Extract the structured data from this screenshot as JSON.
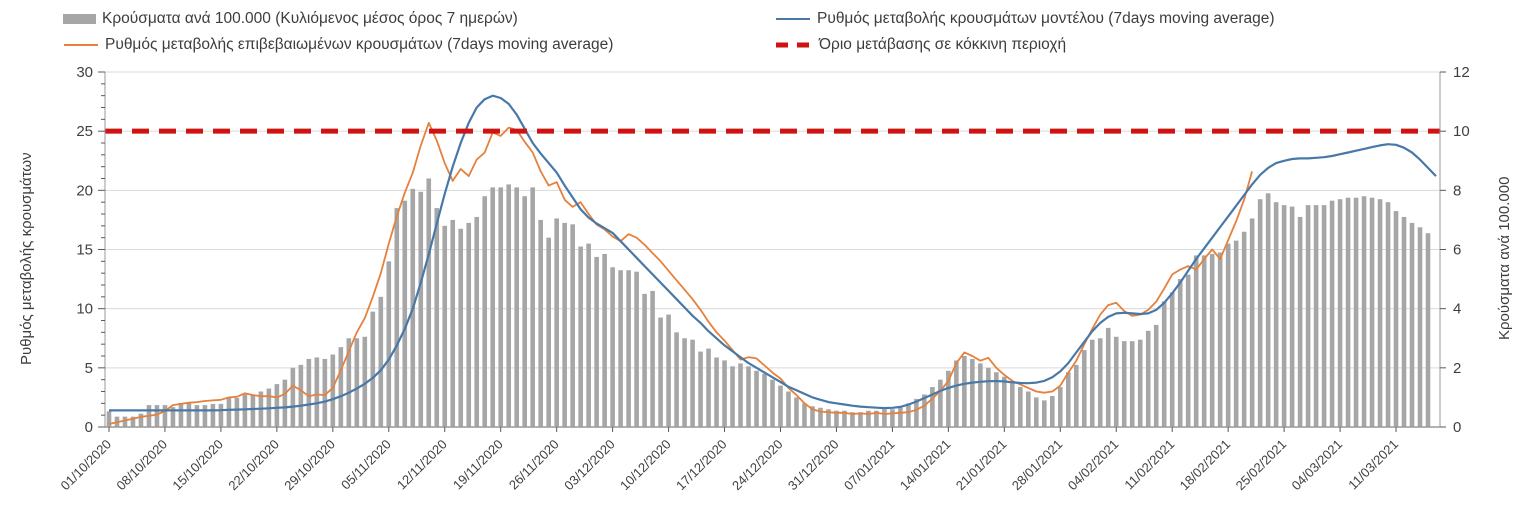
{
  "legend": {
    "items": [
      {
        "label": "Κρούσματα ανά 100.000  (Κυλιόμενος μέσος όρος 7 ημερών)",
        "swatch": "bar",
        "color": "#a6a6a6"
      },
      {
        "label": "Ρυθμός μεταβολής κρουσμάτων μοντέλου (7days moving average)",
        "swatch": "line",
        "color": "#4878a8"
      },
      {
        "label": "Ρυθμός μεταβολής επιβεβαιωμένων κρουσμάτων (7days moving average)",
        "swatch": "line",
        "color": "#e5813c"
      },
      {
        "label": "Όριο μετάβασης σε κόκκινη περιοχή",
        "swatch": "dashed-line",
        "color": "#cf1212"
      }
    ]
  },
  "axes": {
    "left": {
      "title": "Ρυθμός μεταβολής κρουσμάτων",
      "range": [
        0,
        30
      ],
      "major_ticks": [
        0,
        5,
        10,
        15,
        20,
        25,
        30
      ],
      "minor_tick_step": 1
    },
    "right": {
      "title": "Κρούσματα ανά 100.000",
      "range": [
        0,
        12
      ],
      "major_ticks": [
        0,
        2,
        4,
        6,
        8,
        10,
        12
      ]
    },
    "x": {
      "tick_interval_days": 7
    }
  },
  "chart_data": {
    "type": "combo",
    "x_unit": "day",
    "x_start": "01/10/2020",
    "n_days": 167,
    "grid": "horizontal",
    "legend_position": "top",
    "x_tick_labels": [
      "01/10/2020",
      "08/10/2020",
      "15/10/2020",
      "22/10/2020",
      "29/10/2020",
      "05/11/2020",
      "12/11/2020",
      "19/11/2020",
      "26/11/2020",
      "03/12/2020",
      "10/12/2020",
      "17/12/2020",
      "24/12/2020",
      "31/12/2020",
      "07/01/2021",
      "14/01/2021",
      "21/01/2021",
      "28/01/2021",
      "04/02/2021",
      "11/02/2021",
      "18/02/2021",
      "25/02/2021",
      "04/03/2021",
      "11/03/2021"
    ],
    "threshold": {
      "name": "Όριο μετάβασης σε κόκκινη περιοχή",
      "axis": "left",
      "value": 25,
      "color": "#cf1212",
      "style": "dashed"
    },
    "series": [
      {
        "name": "Κρούσματα ανά 100.000 (Κυλιόμενος μέσος όρος 7 ημερών)",
        "type": "bar",
        "axis": "right",
        "color": "#a6a6a6",
        "values": [
          0.53,
          0.35,
          0.35,
          0.35,
          0.45,
          0.74,
          0.74,
          0.74,
          0.67,
          0.81,
          0.81,
          0.74,
          0.74,
          0.78,
          0.78,
          0.98,
          0.98,
          1.1,
          1.1,
          1.2,
          1.3,
          1.45,
          1.6,
          2.0,
          2.1,
          2.3,
          2.35,
          2.3,
          2.45,
          2.7,
          3.0,
          3.0,
          3.05,
          3.9,
          4.4,
          5.6,
          7.4,
          7.65,
          8.05,
          7.95,
          8.4,
          7.4,
          6.8,
          7.0,
          6.7,
          6.9,
          7.1,
          7.8,
          8.1,
          8.1,
          8.2,
          8.1,
          7.8,
          8.1,
          7.0,
          6.4,
          7.05,
          6.9,
          6.85,
          6.1,
          6.2,
          5.75,
          5.85,
          5.4,
          5.3,
          5.3,
          5.25,
          4.5,
          4.6,
          3.7,
          3.8,
          3.2,
          3.0,
          2.95,
          2.55,
          2.65,
          2.35,
          2.25,
          2.05,
          2.15,
          2.05,
          1.9,
          1.8,
          1.6,
          1.4,
          1.2,
          1.0,
          0.8,
          0.7,
          0.65,
          0.6,
          0.55,
          0.55,
          0.5,
          0.5,
          0.55,
          0.55,
          0.6,
          0.6,
          0.65,
          0.8,
          0.95,
          1.1,
          1.35,
          1.6,
          1.9,
          2.25,
          2.4,
          2.3,
          2.15,
          2.0,
          1.85,
          1.7,
          1.5,
          1.35,
          1.2,
          1.0,
          0.9,
          1.05,
          1.35,
          1.85,
          2.1,
          2.6,
          2.95,
          3.0,
          3.35,
          3.05,
          2.9,
          2.9,
          2.95,
          3.25,
          3.45,
          4.25,
          4.55,
          5.0,
          5.15,
          5.8,
          5.8,
          5.85,
          5.9,
          6.2,
          6.3,
          6.6,
          7.05,
          7.7,
          7.9,
          7.6,
          7.5,
          7.45,
          7.1,
          7.5,
          7.5,
          7.5,
          7.65,
          7.7,
          7.75,
          7.75,
          7.8,
          7.75,
          7.7,
          7.6,
          7.3,
          7.1,
          6.9,
          6.75,
          6.55
        ]
      },
      {
        "name": "Ρυθμός μεταβολής επιβεβαιωμένων κρουσμάτων (7days moving average)",
        "type": "line",
        "axis": "left",
        "color": "#e5813c",
        "values": [
          0.25,
          0.4,
          0.55,
          0.7,
          0.85,
          0.95,
          1.05,
          1.35,
          1.85,
          1.95,
          2.05,
          2.1,
          2.2,
          2.25,
          2.3,
          2.5,
          2.55,
          2.85,
          2.7,
          2.6,
          2.6,
          2.5,
          2.8,
          3.5,
          3.1,
          2.6,
          2.75,
          2.7,
          3.3,
          4.8,
          6.4,
          8.0,
          9.2,
          11.0,
          13.0,
          15.5,
          17.8,
          19.8,
          21.5,
          23.8,
          25.7,
          24.2,
          22.3,
          20.8,
          21.8,
          21.2,
          22.6,
          23.2,
          24.9,
          24.6,
          25.3,
          25.1,
          24.1,
          23.2,
          21.6,
          20.4,
          20.7,
          19.2,
          18.6,
          19.0,
          18.0,
          17.1,
          16.7,
          16.1,
          15.7,
          16.3,
          16.0,
          15.4,
          14.7,
          14.0,
          13.2,
          12.4,
          11.6,
          10.8,
          9.9,
          8.9,
          8.0,
          7.3,
          6.5,
          5.7,
          5.9,
          5.8,
          5.2,
          4.6,
          4.1,
          3.3,
          2.7,
          2.0,
          1.5,
          1.3,
          1.25,
          1.2,
          1.2,
          1.1,
          1.15,
          1.1,
          1.2,
          1.1,
          1.15,
          1.2,
          1.25,
          1.45,
          1.8,
          2.4,
          3.05,
          3.9,
          5.4,
          6.3,
          6.0,
          5.6,
          5.85,
          5.0,
          4.4,
          3.9,
          3.6,
          3.3,
          3.0,
          2.9,
          3.0,
          3.5,
          4.6,
          5.6,
          7.0,
          8.3,
          9.5,
          10.3,
          10.5,
          9.8,
          9.4,
          9.5,
          9.9,
          10.6,
          11.7,
          12.9,
          13.3,
          13.6,
          13.3,
          14.2,
          15.0,
          14.2,
          15.8,
          17.4,
          19.2,
          21.6
        ]
      },
      {
        "name": "Ρυθμός μεταβολής κρουσμάτων μοντέλου (7days moving average)",
        "type": "line",
        "axis": "left",
        "color": "#4878a8",
        "values": [
          1.4,
          1.4,
          1.4,
          1.4,
          1.4,
          1.4,
          1.4,
          1.4,
          1.4,
          1.4,
          1.4,
          1.4,
          1.4,
          1.4,
          1.42,
          1.45,
          1.47,
          1.5,
          1.52,
          1.55,
          1.58,
          1.62,
          1.66,
          1.72,
          1.8,
          1.9,
          2.0,
          2.15,
          2.35,
          2.6,
          2.9,
          3.25,
          3.65,
          4.15,
          4.8,
          5.7,
          6.9,
          8.3,
          10.0,
          12.2,
          14.6,
          17.2,
          19.7,
          22.0,
          24.0,
          25.7,
          27.0,
          27.7,
          28.0,
          27.8,
          27.3,
          26.4,
          25.2,
          24.0,
          23.1,
          22.3,
          21.5,
          20.4,
          19.4,
          18.4,
          17.7,
          17.2,
          16.8,
          16.4,
          15.7,
          15.0,
          14.3,
          13.6,
          12.9,
          12.2,
          11.5,
          10.8,
          10.1,
          9.4,
          8.8,
          8.1,
          7.5,
          6.9,
          6.4,
          5.9,
          5.4,
          5.0,
          4.6,
          4.2,
          3.8,
          3.4,
          3.1,
          2.8,
          2.5,
          2.3,
          2.1,
          2.0,
          1.9,
          1.8,
          1.72,
          1.67,
          1.63,
          1.6,
          1.62,
          1.7,
          1.9,
          2.15,
          2.45,
          2.75,
          3.05,
          3.3,
          3.5,
          3.65,
          3.75,
          3.82,
          3.87,
          3.88,
          3.85,
          3.78,
          3.72,
          3.7,
          3.75,
          3.9,
          4.2,
          4.7,
          5.4,
          6.3,
          7.2,
          8.1,
          8.8,
          9.3,
          9.6,
          9.65,
          9.6,
          9.55,
          9.6,
          9.9,
          10.5,
          11.3,
          12.2,
          13.2,
          14.2,
          15.1,
          16.0,
          16.9,
          17.8,
          18.7,
          19.6,
          20.5,
          21.3,
          21.9,
          22.3,
          22.5,
          22.65,
          22.7,
          22.7,
          22.75,
          22.8,
          22.9,
          23.05,
          23.2,
          23.35,
          23.5,
          23.65,
          23.8,
          23.9,
          23.85,
          23.6,
          23.2,
          22.6,
          21.9,
          21.2
        ]
      }
    ]
  },
  "style": {
    "grid_color": "#d9d9d9",
    "axis_color": "#9a9a9a",
    "tick_color": "#595959",
    "label_color": "#404040",
    "background": "#ffffff"
  }
}
